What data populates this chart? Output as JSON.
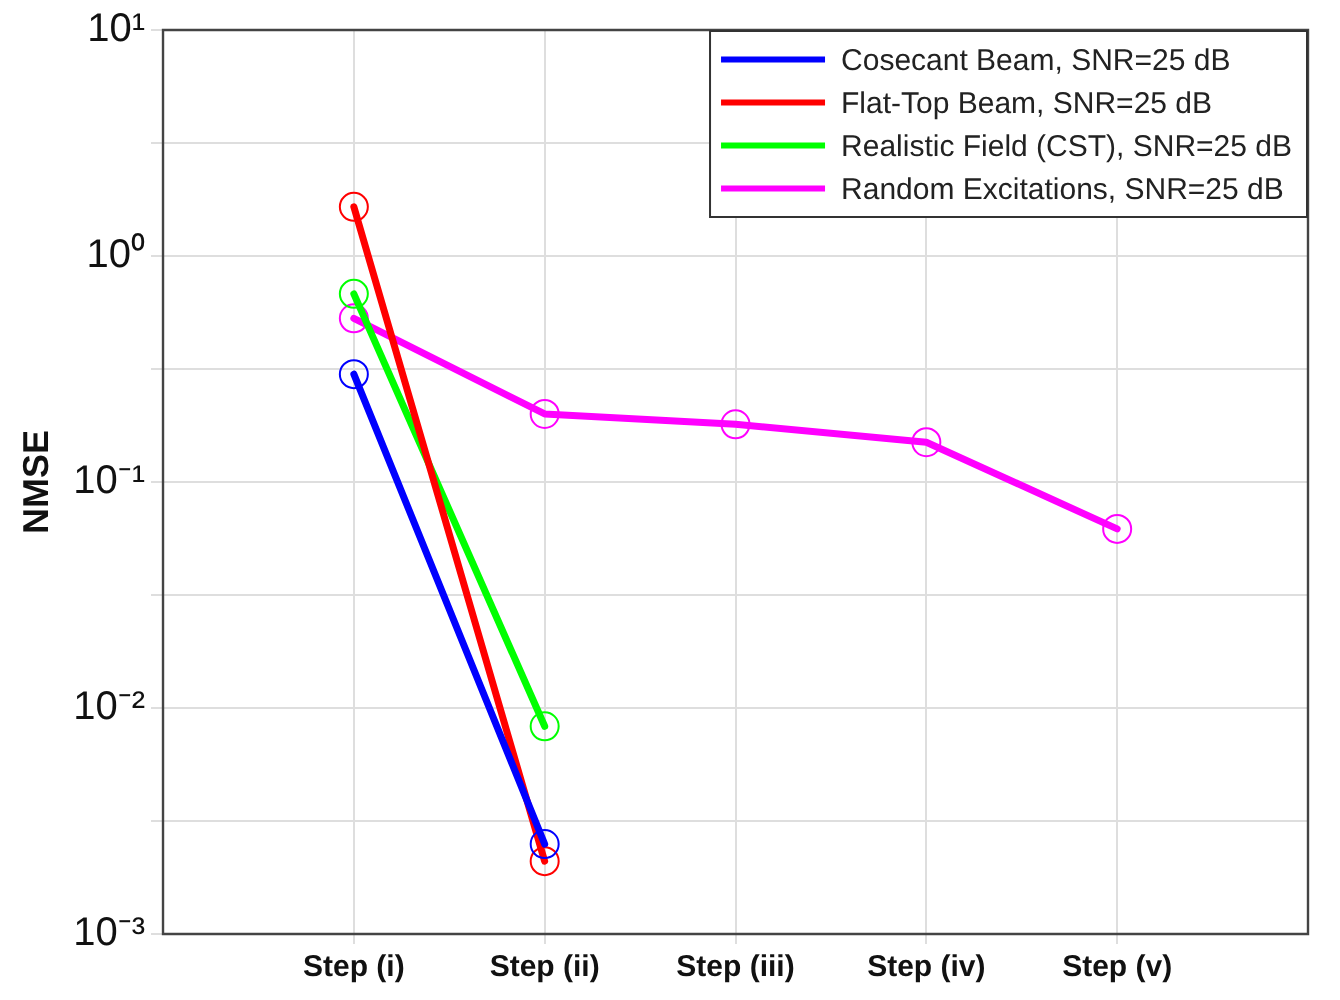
{
  "chart_data": {
    "type": "line",
    "ylabel": "NMSE",
    "categories": [
      "Step (i)",
      "Step (ii)",
      "Step (iii)",
      "Step (iv)",
      "Step (v)"
    ],
    "series": [
      {
        "name": "Cosecant Beam, SNR=25 dB",
        "color": "#0000ff",
        "values": [
          0.3,
          0.0025,
          null,
          null,
          null
        ]
      },
      {
        "name": "Flat-Top Beam, SNR=25 dB",
        "color": "#ff0000",
        "values": [
          1.65,
          0.0021,
          null,
          null,
          null
        ]
      },
      {
        "name": "Realistic Field (CST), SNR=25 dB",
        "color": "#00ff00",
        "values": [
          0.68,
          0.0083,
          null,
          null,
          null
        ]
      },
      {
        "name": "Random Excitations, SNR=25 dB",
        "color": "#ff00ff",
        "values": [
          0.53,
          0.2,
          0.18,
          0.15,
          0.062
        ]
      }
    ],
    "log": "y",
    "ylim": [
      0.001,
      10
    ],
    "yticks": [
      {
        "value": 0.001,
        "label": "10⁻³"
      },
      {
        "value": 0.0031623,
        "label": null
      },
      {
        "value": 0.01,
        "label": "10⁻²"
      },
      {
        "value": 0.031623,
        "label": null
      },
      {
        "value": 0.1,
        "label": "10⁻¹"
      },
      {
        "value": 0.31623,
        "label": null
      },
      {
        "value": 1,
        "label": "10⁰"
      },
      {
        "value": 3.1623,
        "label": null
      },
      {
        "value": 10,
        "label": "10¹"
      }
    ],
    "grid": true,
    "legend": "top right",
    "marker": "circle",
    "line_style": "solid"
  }
}
